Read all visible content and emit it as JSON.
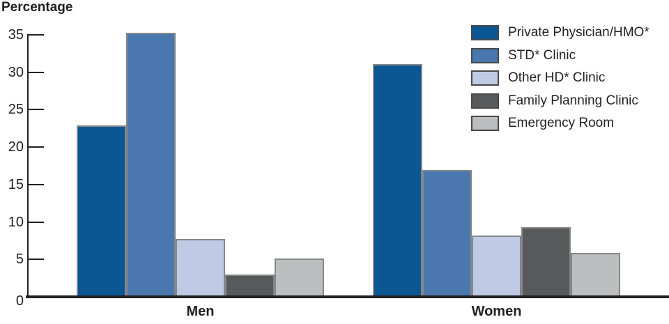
{
  "chart_data": {
    "type": "bar",
    "title": "",
    "ylabel": "Percentage",
    "xlabel": "",
    "categories": [
      "Men",
      "Women"
    ],
    "series": [
      {
        "name": "Private Physician/HMO*",
        "color": "#0B5794",
        "values": [
          22.9,
          31.1
        ]
      },
      {
        "name": "STD* Clinic",
        "color": "#4A78AE",
        "values": [
          35.3,
          16.9
        ]
      },
      {
        "name": "Other HD* Clinic",
        "color": "#BFCAE4",
        "values": [
          7.7,
          8.2
        ]
      },
      {
        "name": "Family Planning Clinic",
        "color": "#58595B",
        "values": [
          3.0,
          9.3
        ]
      },
      {
        "name": "Emergency Room",
        "color": "#BCBEC0",
        "values": [
          5.1,
          5.9
        ]
      }
    ],
    "ylim": [
      0,
      35
    ],
    "yticks": [
      0,
      5,
      10,
      15,
      20,
      25,
      30,
      35
    ],
    "grid": false,
    "legend_position": "top-right"
  },
  "colors": {
    "axis": "#231F20",
    "text": "#231F20",
    "bar_border": "#85878A",
    "legend_swatch_border": "#48494B",
    "background": "#FFFFFF"
  }
}
